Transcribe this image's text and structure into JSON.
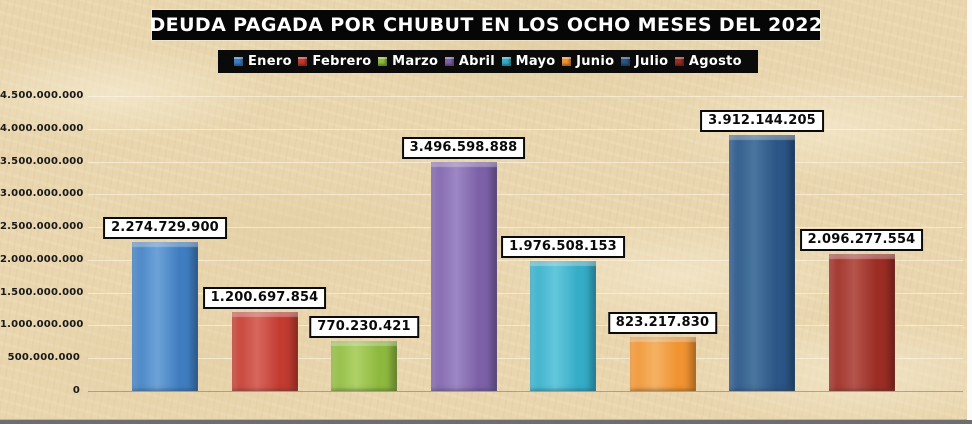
{
  "title": "DEUDA PAGADA POR CHUBUT EN LOS OCHO MESES DEL 2022",
  "chart_data": {
    "type": "bar",
    "title": "DEUDA PAGADA POR CHUBUT EN LOS OCHO MESES DEL 2022",
    "categories": [
      "Enero",
      "Febrero",
      "Marzo",
      "Abril",
      "Mayo",
      "Junio",
      "Julio",
      "Agosto"
    ],
    "values": [
      2274729900,
      1200697854,
      770230421,
      3496598888,
      1976508153,
      823217830,
      3912144205,
      2096277554
    ],
    "value_labels": [
      "2.274.729.900",
      "1.200.697.854",
      "770.230.421",
      "3.496.598.888",
      "1.976.508.153",
      "823.217.830",
      "3.912.144.205",
      "2.096.277.554"
    ],
    "series": [
      {
        "name": "Enero",
        "value": 2274729900,
        "label": "2.274.729.900",
        "color": "#3f7dc0",
        "color_light": "#6ca2d8"
      },
      {
        "name": "Febrero",
        "value": 1200697854,
        "label": "1.200.697.854",
        "color": "#c23b31",
        "color_light": "#d8665c"
      },
      {
        "name": "Marzo",
        "value": 770230421,
        "label": "770.230.421",
        "color": "#8eb93f",
        "color_light": "#aed168"
      },
      {
        "name": "Abril",
        "value": 3496598888,
        "label": "3.496.598.888",
        "color": "#7c61a8",
        "color_light": "#9d87c4"
      },
      {
        "name": "Mayo",
        "value": 1976508153,
        "label": "1.976.508.153",
        "color": "#35adc8",
        "color_light": "#63c7dc"
      },
      {
        "name": "Junio",
        "value": 823217830,
        "label": "823.217.830",
        "color": "#f09330",
        "color_light": "#f5b264"
      },
      {
        "name": "Julio",
        "value": 3912144205,
        "label": "3.912.144.205",
        "color": "#2b5586",
        "color_light": "#49759f"
      },
      {
        "name": "Agosto",
        "value": 2096277554,
        "label": "2.096.277.554",
        "color": "#9b2d24",
        "color_light": "#b5544b"
      }
    ],
    "xlabel": "",
    "ylabel": "",
    "ylim": [
      0,
      4500000000
    ],
    "ytick_step": 500000000,
    "yticks": [
      {
        "value": 4500000000,
        "label": "4.500.000.000"
      },
      {
        "value": 4000000000,
        "label": "4.000.000.000"
      },
      {
        "value": 3500000000,
        "label": "3.500.000.000"
      },
      {
        "value": 3000000000,
        "label": "3.000.000.000"
      },
      {
        "value": 2500000000,
        "label": "2.500.000.000"
      },
      {
        "value": 2000000000,
        "label": "2.000.000.000"
      },
      {
        "value": 1500000000,
        "label": "1.500.000.000"
      },
      {
        "value": 1000000000,
        "label": "1.000.000.000"
      },
      {
        "value": 500000000,
        "label": "500.000.000"
      },
      {
        "value": 0,
        "label": "0"
      }
    ],
    "grid": "faint-horizontal",
    "legend_position": "top"
  },
  "colors": {
    "background_parchment": "#e9d6ae",
    "title_bg": "#060606",
    "title_text": "#ffffff",
    "legend_bg": "#0a0a0a",
    "legend_text": "#ffffff",
    "bar_label_bg": "#ffffff",
    "bar_label_border": "#0a0a0a",
    "axis_text": "#191919"
  }
}
